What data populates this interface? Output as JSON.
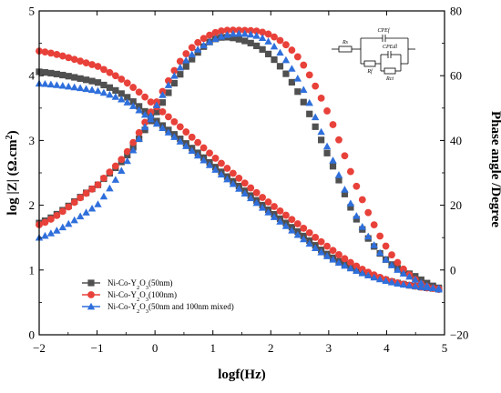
{
  "chart_data": {
    "type": "scatter",
    "title": "",
    "xlabel": "logf(Hz)",
    "ylabel_left_parts": {
      "prefix": "log |Z| (Ω.cm",
      "sup": "2",
      "suffix": ")"
    },
    "ylabel_right": "Phase angle /Degree",
    "xlim": [
      -2,
      5
    ],
    "ylim_left": [
      0,
      5
    ],
    "ylim_right": [
      -20,
      80
    ],
    "x_ticks": [
      "−2",
      "−1",
      "0",
      "1",
      "2",
      "3",
      "4",
      "5"
    ],
    "y_left_ticks": [
      "0",
      "1",
      "2",
      "3",
      "4",
      "5"
    ],
    "y_right_ticks": [
      "−20",
      "0",
      "20",
      "40",
      "60",
      "80"
    ],
    "legend_position": "bottom-left",
    "grid": false,
    "series": [
      {
        "name_parts": {
          "prefix": "Ni-Co-Y",
          "sub1": "2",
          "mid": "O",
          "sub2": "3",
          "suffix": "(50nm)"
        },
        "marker": "square",
        "color": "#505050",
        "modulus_points": [
          [
            -2.0,
            4.06
          ],
          [
            -1.0,
            3.9
          ],
          [
            -0.5,
            3.68
          ],
          [
            0.0,
            3.32
          ],
          [
            0.5,
            2.98
          ],
          [
            1.0,
            2.62
          ],
          [
            1.5,
            2.26
          ],
          [
            2.0,
            1.9
          ],
          [
            2.5,
            1.57
          ],
          [
            3.0,
            1.23
          ],
          [
            3.5,
            0.99
          ],
          [
            4.0,
            0.84
          ],
          [
            4.5,
            0.75
          ],
          [
            4.9,
            0.71
          ]
        ],
        "phase_points": [
          [
            -2.0,
            14.5
          ],
          [
            -1.0,
            26.0
          ],
          [
            -0.5,
            35.0
          ],
          [
            0.0,
            48.0
          ],
          [
            0.5,
            62.0
          ],
          [
            1.0,
            71.0
          ],
          [
            1.5,
            71.0
          ],
          [
            2.0,
            66.0
          ],
          [
            2.5,
            54.0
          ],
          [
            3.0,
            35.0
          ],
          [
            3.5,
            15.0
          ],
          [
            4.0,
            3.0
          ],
          [
            4.5,
            -2.0
          ],
          [
            4.9,
            -5.5
          ]
        ]
      },
      {
        "name_parts": {
          "prefix": "Ni-Co-Y",
          "sub1": "2",
          "mid": "O",
          "sub2": "3",
          "suffix": "(100nm)"
        },
        "marker": "circle",
        "color": "#e8413a",
        "modulus_points": [
          [
            -2.0,
            4.38
          ],
          [
            -1.0,
            4.15
          ],
          [
            -0.5,
            3.9
          ],
          [
            0.0,
            3.54
          ],
          [
            0.5,
            3.16
          ],
          [
            1.0,
            2.76
          ],
          [
            1.5,
            2.38
          ],
          [
            2.0,
            2.02
          ],
          [
            2.5,
            1.69
          ],
          [
            3.0,
            1.35
          ],
          [
            3.5,
            1.05
          ],
          [
            4.0,
            0.85
          ],
          [
            4.5,
            0.75
          ],
          [
            4.9,
            0.71
          ]
        ],
        "phase_points": [
          [
            -2.0,
            14.0
          ],
          [
            -1.0,
            26.0
          ],
          [
            -0.5,
            36.0
          ],
          [
            0.0,
            51.0
          ],
          [
            0.5,
            66.0
          ],
          [
            1.0,
            73.0
          ],
          [
            1.5,
            74.0
          ],
          [
            2.0,
            72.5
          ],
          [
            2.5,
            65.0
          ],
          [
            3.0,
            48.0
          ],
          [
            3.5,
            25.0
          ],
          [
            4.0,
            7.0
          ],
          [
            4.5,
            -3.0
          ],
          [
            4.9,
            -6.0
          ]
        ]
      },
      {
        "name_parts": {
          "prefix": "Ni-Co-Y",
          "sub1": "2",
          "mid": "O",
          "sub2": "3",
          "suffix": "(50nm and 100nm  mixed)"
        },
        "marker": "triangle",
        "color": "#2f6fdc",
        "modulus_points": [
          [
            -2.0,
            3.88
          ],
          [
            -1.0,
            3.77
          ],
          [
            -0.5,
            3.6
          ],
          [
            0.0,
            3.28
          ],
          [
            0.5,
            2.94
          ],
          [
            1.0,
            2.58
          ],
          [
            1.5,
            2.22
          ],
          [
            2.0,
            1.86
          ],
          [
            2.5,
            1.52
          ],
          [
            3.0,
            1.2
          ],
          [
            3.5,
            0.98
          ],
          [
            4.0,
            0.83
          ],
          [
            4.5,
            0.75
          ],
          [
            4.9,
            0.72
          ]
        ],
        "phase_points": [
          [
            -2.0,
            10.0
          ],
          [
            -1.0,
            20.0
          ],
          [
            -0.5,
            33.0
          ],
          [
            0.0,
            50.0
          ],
          [
            0.5,
            64.0
          ],
          [
            1.0,
            71.0
          ],
          [
            1.5,
            73.0
          ],
          [
            2.0,
            70.0
          ],
          [
            2.5,
            58.0
          ],
          [
            3.0,
            37.0
          ],
          [
            3.5,
            16.0
          ],
          [
            4.0,
            3.0
          ],
          [
            4.5,
            -3.0
          ],
          [
            4.9,
            -6.0
          ]
        ]
      }
    ],
    "circuit_inset": {
      "labels": [
        "Rs",
        "CPEf",
        "Rf",
        "CPEdl",
        "Rct"
      ]
    }
  }
}
